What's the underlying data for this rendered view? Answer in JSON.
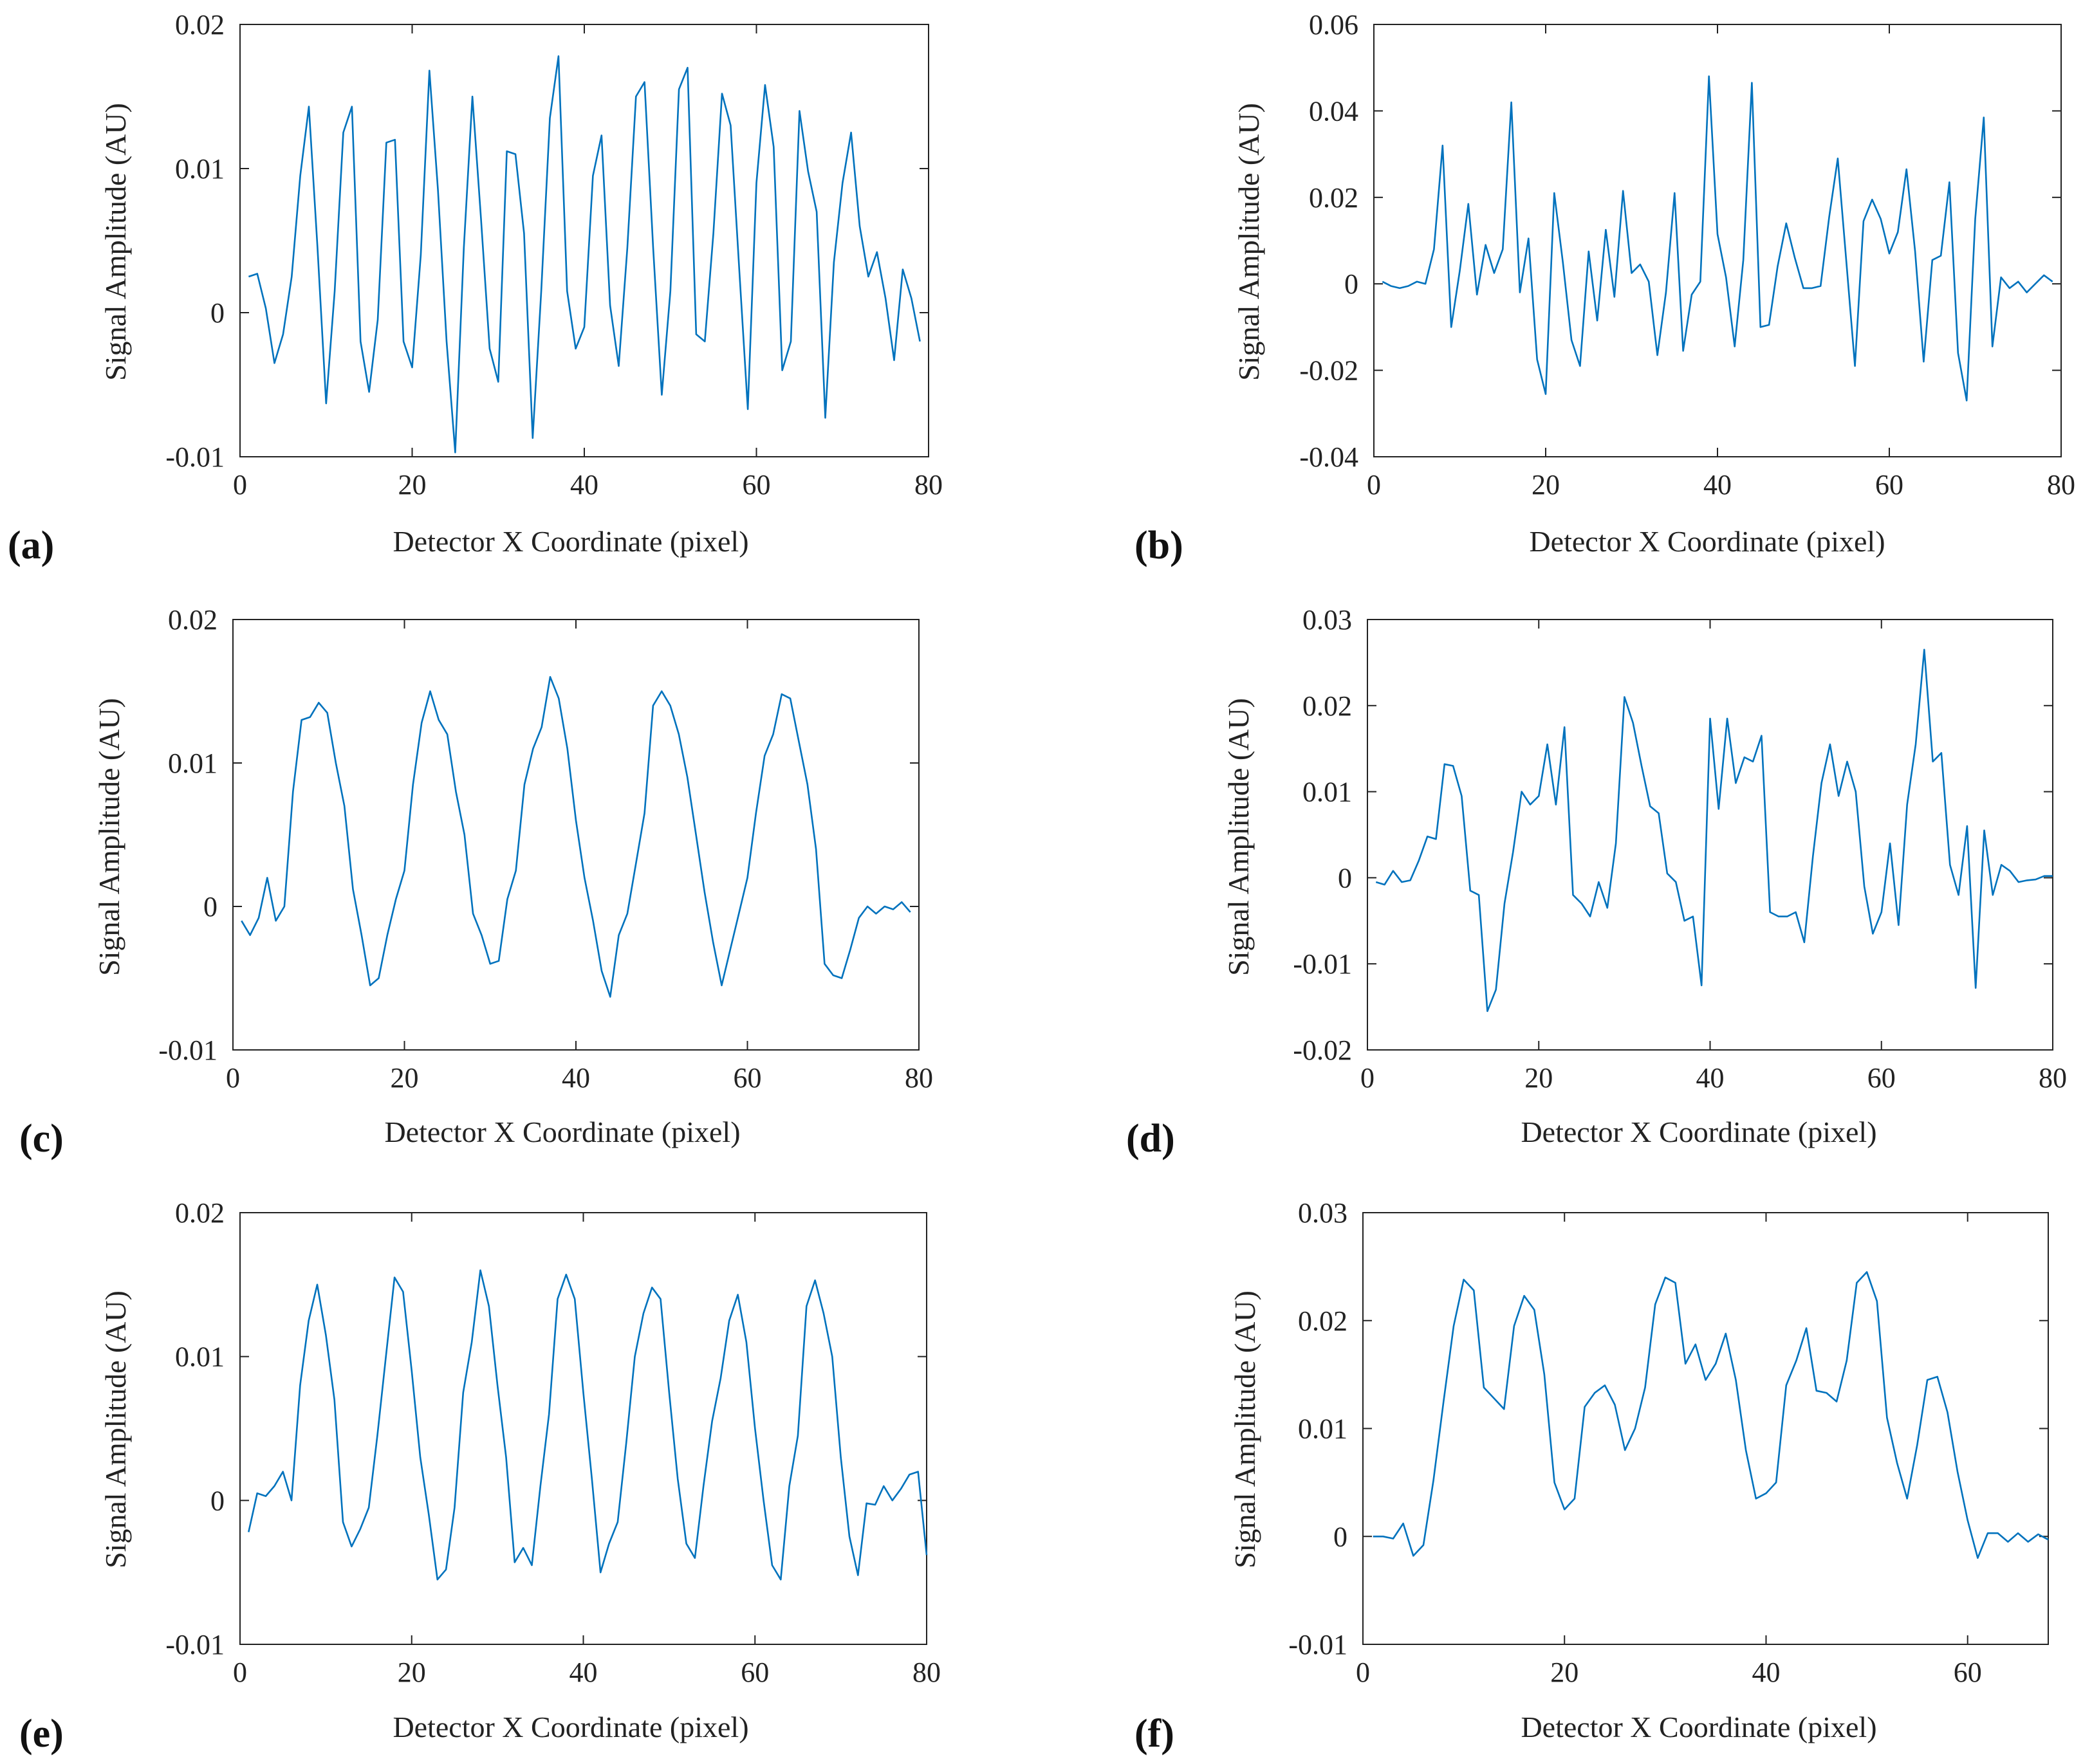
{
  "figure": {
    "panel_labels": [
      "(a)",
      "(b)",
      "(c)",
      "(d)",
      "(e)",
      "(f)"
    ],
    "line_color": "#0072bd",
    "axis_color": "#222222"
  },
  "chart_data": [
    {
      "panel": "(a)",
      "type": "line",
      "xlabel": "Detector X Coordinate (pixel)",
      "ylabel": "Signal Amplitude (AU)",
      "xlim": [
        0,
        80
      ],
      "ylim": [
        -0.01,
        0.02
      ],
      "xticks": [
        0,
        20,
        40,
        60,
        80
      ],
      "yticks": [
        -0.01,
        0,
        0.01,
        0.02
      ],
      "ytick_labels": [
        "-0.01",
        "0",
        "0.01",
        "0.02"
      ],
      "series": [
        {
          "name": "signal",
          "x_start": 1,
          "x_step": 1,
          "values": [
            0.0025,
            0.0027,
            0.0003,
            -0.0035,
            -0.0015,
            0.0025,
            0.0095,
            0.0143,
            0.0045,
            -0.0063,
            0.0015,
            0.0125,
            0.0143,
            -0.002,
            -0.0055,
            -0.0005,
            0.0118,
            0.012,
            -0.002,
            -0.0038,
            0.004,
            0.0168,
            0.0085,
            -0.002,
            -0.0097,
            0.0045,
            0.015,
            0.0065,
            -0.0025,
            -0.0048,
            0.0112,
            0.011,
            0.0055,
            -0.0087,
            0.0015,
            0.0135,
            0.0178,
            0.0015,
            -0.0025,
            -0.001,
            0.0095,
            0.0123,
            0.0005,
            -0.0037,
            0.0045,
            0.015,
            0.016,
            0.0045,
            -0.0057,
            0.0015,
            0.0155,
            0.017,
            -0.0015,
            -0.002,
            0.0055,
            0.0152,
            0.013,
            0.003,
            -0.0067,
            0.009,
            0.0158,
            0.0115,
            -0.004,
            -0.002,
            0.014,
            0.0098,
            0.007,
            -0.0073,
            0.0035,
            0.009,
            0.0125,
            0.006,
            0.0025,
            0.0042,
            0.001,
            -0.0033,
            0.003,
            0.001,
            -0.002
          ]
        }
      ]
    },
    {
      "panel": "(b)",
      "type": "line",
      "xlabel": "Detector X Coordinate (pixel)",
      "ylabel": "Signal Amplitude (AU)",
      "xlim": [
        0,
        80
      ],
      "ylim": [
        -0.04,
        0.06
      ],
      "xticks": [
        0,
        20,
        40,
        60,
        80
      ],
      "yticks": [
        -0.04,
        -0.02,
        0,
        0.02,
        0.04,
        0.06
      ],
      "ytick_labels": [
        "-0.04",
        "-0.02",
        "0",
        "0.02",
        "0.04",
        "0.06"
      ],
      "series": [
        {
          "name": "signal",
          "x_start": 1,
          "x_step": 1,
          "values": [
            0.0005,
            -0.0005,
            -0.001,
            -0.0005,
            0.0005,
            0.0,
            0.008,
            0.032,
            -0.01,
            0.003,
            0.0185,
            -0.0025,
            0.009,
            0.0025,
            0.008,
            0.042,
            -0.002,
            0.0105,
            -0.0175,
            -0.0255,
            0.021,
            0.005,
            -0.013,
            -0.019,
            0.0075,
            -0.0085,
            0.0125,
            -0.003,
            0.0215,
            0.0025,
            0.0045,
            0.0005,
            -0.0165,
            -0.002,
            0.021,
            -0.0155,
            -0.0025,
            0.0005,
            0.048,
            0.0115,
            0.0015,
            -0.0145,
            0.0055,
            0.0465,
            -0.01,
            -0.0095,
            0.004,
            0.014,
            0.006,
            -0.001,
            -0.001,
            -0.0005,
            0.0155,
            0.029,
            0.005,
            -0.019,
            0.0145,
            0.0195,
            0.015,
            0.007,
            0.012,
            0.0265,
            0.0075,
            -0.018,
            0.0055,
            0.0065,
            0.0235,
            -0.016,
            -0.027,
            0.015,
            0.0385,
            -0.0145,
            0.0015,
            -0.001,
            0.0005,
            -0.002,
            0.0,
            0.002,
            0.0005
          ]
        }
      ]
    },
    {
      "panel": "(c)",
      "type": "line",
      "xlabel": "Detector X Coordinate (pixel)",
      "ylabel": "Signal Amplitude (AU)",
      "xlim": [
        0,
        80
      ],
      "ylim": [
        -0.01,
        0.02
      ],
      "xticks": [
        0,
        20,
        40,
        60,
        80
      ],
      "yticks": [
        -0.01,
        0,
        0.01,
        0.02
      ],
      "ytick_labels": [
        "-0.01",
        "0",
        "0.01",
        "0.02"
      ],
      "series": [
        {
          "name": "signal",
          "x_start": 1,
          "x_step": 1,
          "values": [
            -0.001,
            -0.002,
            -0.0008,
            0.002,
            -0.001,
            0.0,
            0.008,
            0.013,
            0.0132,
            0.0142,
            0.0135,
            0.01,
            0.007,
            0.0012,
            -0.002,
            -0.0055,
            -0.005,
            -0.002,
            0.0005,
            0.0025,
            0.0085,
            0.0128,
            0.015,
            0.013,
            0.012,
            0.008,
            0.005,
            -0.0005,
            -0.002,
            -0.004,
            -0.0038,
            0.0005,
            0.0025,
            0.0085,
            0.011,
            0.0125,
            0.016,
            0.0145,
            0.011,
            0.006,
            0.002,
            -0.001,
            -0.0045,
            -0.0063,
            -0.002,
            -0.0005,
            0.003,
            0.0065,
            0.014,
            0.015,
            0.014,
            0.012,
            0.009,
            0.005,
            0.001,
            -0.0025,
            -0.0055,
            -0.003,
            -0.0005,
            0.002,
            0.0065,
            0.0105,
            0.012,
            0.0148,
            0.0145,
            0.0115,
            0.0085,
            0.004,
            -0.004,
            -0.0048,
            -0.005,
            -0.003,
            -0.0008,
            0.0,
            -0.0005,
            0.0,
            -0.0002,
            0.0003,
            -0.0004
          ]
        }
      ]
    },
    {
      "panel": "(d)",
      "type": "line",
      "xlabel": "Detector X Coordinate (pixel)",
      "ylabel": "Signal Amplitude (AU)",
      "xlim": [
        0,
        80
      ],
      "ylim": [
        -0.02,
        0.03
      ],
      "xticks": [
        0,
        20,
        40,
        60,
        80
      ],
      "yticks": [
        -0.02,
        -0.01,
        0,
        0.01,
        0.02,
        0.03
      ],
      "ytick_labels": [
        "-0.02",
        "-0.01",
        "0",
        "0.01",
        "0.02",
        "0.03"
      ],
      "series": [
        {
          "name": "signal",
          "x_start": 1,
          "x_step": 1,
          "values": [
            -0.0005,
            -0.0008,
            0.0008,
            -0.0005,
            -0.0003,
            0.002,
            0.0048,
            0.0045,
            0.0132,
            0.013,
            0.0095,
            -0.0015,
            -0.002,
            -0.0155,
            -0.013,
            -0.003,
            0.003,
            0.01,
            0.0085,
            0.0095,
            0.0155,
            0.0085,
            0.0175,
            -0.002,
            -0.003,
            -0.0045,
            -0.0005,
            -0.0035,
            0.004,
            0.021,
            0.018,
            0.013,
            0.0083,
            0.0075,
            0.0005,
            -0.0005,
            -0.005,
            -0.0045,
            -0.0125,
            0.0185,
            0.008,
            0.0185,
            0.011,
            0.014,
            0.0135,
            0.0165,
            -0.004,
            -0.0045,
            -0.0045,
            -0.004,
            -0.0075,
            0.0025,
            0.011,
            0.0155,
            0.0095,
            0.0135,
            0.01,
            -0.001,
            -0.0065,
            -0.004,
            0.004,
            -0.0055,
            0.0085,
            0.0155,
            0.0265,
            0.0135,
            0.0145,
            0.0015,
            -0.002,
            0.006,
            -0.0128,
            0.0055,
            -0.002,
            0.0015,
            0.0008,
            -0.0005,
            -0.0003,
            -0.0002,
            0.0002,
            0.0002
          ]
        }
      ]
    },
    {
      "panel": "(e)",
      "type": "line",
      "xlabel": "Detector X Coordinate (pixel)",
      "ylabel": "Signal Amplitude (AU)",
      "xlim": [
        0,
        80
      ],
      "ylim": [
        -0.01,
        0.02
      ],
      "xticks": [
        0,
        20,
        40,
        60,
        80
      ],
      "yticks": [
        -0.01,
        0,
        0.01,
        0.02
      ],
      "ytick_labels": [
        "-0.01",
        "0",
        "0.01",
        "0.02"
      ],
      "series": [
        {
          "name": "signal",
          "x_start": 1,
          "x_step": 1,
          "values": [
            -0.0022,
            0.0005,
            0.0003,
            0.001,
            0.002,
            0.0,
            0.008,
            0.0125,
            0.015,
            0.0115,
            0.007,
            -0.0015,
            -0.0032,
            -0.002,
            -0.0005,
            0.0045,
            0.01,
            0.0155,
            0.0145,
            0.009,
            0.003,
            -0.001,
            -0.0055,
            -0.0048,
            -0.0005,
            0.0075,
            0.011,
            0.016,
            0.0135,
            0.008,
            0.003,
            -0.0043,
            -0.0033,
            -0.0045,
            0.001,
            0.006,
            0.014,
            0.0157,
            0.014,
            0.0075,
            0.0015,
            -0.005,
            -0.003,
            -0.0015,
            0.004,
            0.01,
            0.013,
            0.0148,
            0.014,
            0.0075,
            0.0015,
            -0.003,
            -0.004,
            0.001,
            0.0055,
            0.0085,
            0.0125,
            0.0143,
            0.011,
            0.005,
            0.0,
            -0.0045,
            -0.0055,
            0.001,
            0.0045,
            0.0135,
            0.0153,
            0.013,
            0.01,
            0.003,
            -0.0025,
            -0.0052,
            -0.0002,
            -0.0003,
            0.001,
            0.0,
            0.0008,
            0.0018,
            0.002,
            -0.0038
          ]
        }
      ]
    },
    {
      "panel": "(f)",
      "type": "line",
      "xlabel": "Detector X Coordinate (pixel)",
      "ylabel": "Signal Amplitude (AU)",
      "xlim": [
        0,
        68
      ],
      "ylim": [
        -0.01,
        0.03
      ],
      "xticks": [
        0,
        20,
        40,
        60
      ],
      "yticks": [
        -0.01,
        0,
        0.01,
        0.02,
        0.03
      ],
      "ytick_labels": [
        "-0.01",
        "0",
        "0.01",
        "0.02",
        "0.03"
      ],
      "series": [
        {
          "name": "signal",
          "x_start": 1,
          "x_step": 1,
          "values": [
            0.0,
            0.0,
            -0.0002,
            0.0012,
            -0.0018,
            -0.0008,
            0.0052,
            0.0125,
            0.0195,
            0.0238,
            0.0228,
            0.0138,
            0.0128,
            0.0118,
            0.0195,
            0.0223,
            0.021,
            0.015,
            0.005,
            0.0025,
            0.0035,
            0.012,
            0.0133,
            0.014,
            0.0122,
            0.008,
            0.01,
            0.0138,
            0.0215,
            0.024,
            0.0235,
            0.016,
            0.0178,
            0.0145,
            0.016,
            0.0188,
            0.0145,
            0.008,
            0.0035,
            0.004,
            0.005,
            0.014,
            0.0163,
            0.0193,
            0.0135,
            0.0133,
            0.0125,
            0.0163,
            0.0235,
            0.0245,
            0.0218,
            0.011,
            0.0068,
            0.0035,
            0.0085,
            0.0145,
            0.0148,
            0.0115,
            0.006,
            0.0015,
            -0.002,
            0.0003,
            0.0003,
            -0.0005,
            0.0003,
            -0.0005,
            0.0002,
            -0.0003
          ]
        }
      ]
    }
  ]
}
